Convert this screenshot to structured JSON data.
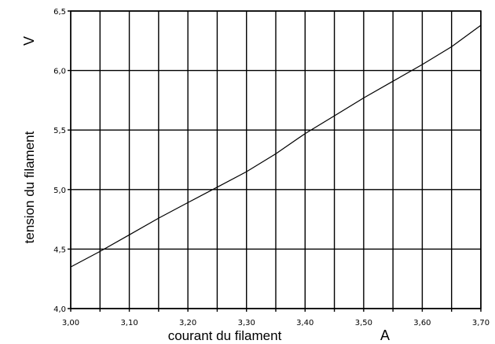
{
  "chart_data": {
    "type": "line",
    "xlabel": "courant du filament",
    "xunit": "A",
    "ylabel": "tension du filament",
    "yunit": "V",
    "xlim": [
      3.0,
      3.7
    ],
    "ylim": [
      4.0,
      6.5
    ],
    "x_ticks": [
      3.0,
      3.05,
      3.1,
      3.15,
      3.2,
      3.25,
      3.3,
      3.35,
      3.4,
      3.45,
      3.5,
      3.55,
      3.6,
      3.65,
      3.7
    ],
    "x_tick_labels": [
      "3,00",
      "3,10",
      "3,20",
      "3,30",
      "3,40",
      "3,50",
      "3,60",
      "3,70"
    ],
    "x_tick_label_values": [
      3.0,
      3.1,
      3.2,
      3.3,
      3.4,
      3.5,
      3.6,
      3.7
    ],
    "y_ticks": [
      4.0,
      4.5,
      5.0,
      5.5,
      6.0,
      6.5
    ],
    "y_tick_labels": [
      "4,0",
      "4,5",
      "5,0",
      "5,5",
      "6,0",
      "6,5"
    ],
    "grid": true,
    "series": [
      {
        "x": [
          3.0,
          3.05,
          3.1,
          3.15,
          3.2,
          3.25,
          3.3,
          3.35,
          3.4,
          3.45,
          3.5,
          3.55,
          3.6,
          3.65,
          3.7
        ],
        "y": [
          4.35,
          4.48,
          4.62,
          4.76,
          4.89,
          5.02,
          5.15,
          5.3,
          5.47,
          5.62,
          5.77,
          5.91,
          6.05,
          6.2,
          6.38
        ]
      }
    ]
  }
}
